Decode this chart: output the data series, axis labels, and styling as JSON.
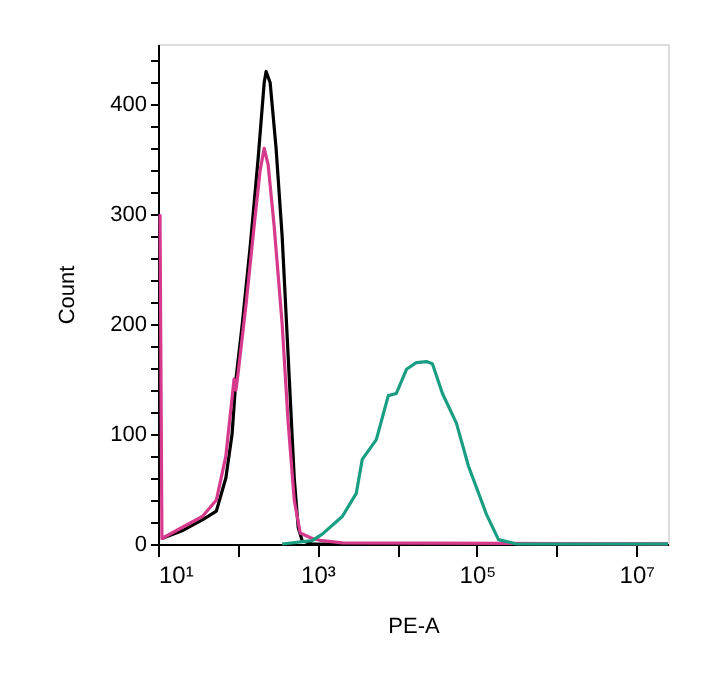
{
  "chart_data": {
    "type": "line",
    "xlabel": "PE-A",
    "ylabel": "Count",
    "log": "x",
    "xlim": [
      10,
      25000000
    ],
    "ylim": [
      0,
      455
    ],
    "xticks": [
      {
        "value": 10,
        "label": "10¹"
      },
      {
        "value": 100,
        "label": null
      },
      {
        "value": 1000,
        "label": "10³"
      },
      {
        "value": 10000,
        "label": null
      },
      {
        "value": 100000,
        "label": "10⁵"
      },
      {
        "value": 1000000,
        "label": null
      },
      {
        "value": 10000000,
        "label": "10⁷"
      }
    ],
    "yticks": [
      0,
      {
        "value": 20,
        "label": null
      },
      {
        "value": 40,
        "label": null
      },
      {
        "value": 60,
        "label": null
      },
      {
        "value": 80,
        "label": null
      },
      100,
      {
        "value": 120,
        "label": null
      },
      {
        "value": 140,
        "label": null
      },
      {
        "value": 160,
        "label": null
      },
      {
        "value": 180,
        "label": null
      },
      200,
      {
        "value": 220,
        "label": null
      },
      {
        "value": 240,
        "label": null
      },
      {
        "value": 260,
        "label": null
      },
      {
        "value": 280,
        "label": null
      },
      300,
      {
        "value": 320,
        "label": null
      },
      {
        "value": 340,
        "label": null
      },
      {
        "value": 360,
        "label": null
      },
      {
        "value": 380,
        "label": null
      },
      400,
      {
        "value": 420,
        "label": null
      },
      {
        "value": 440,
        "label": null
      }
    ],
    "grid": false,
    "legend": false,
    "marker": "none",
    "line_style": "solid",
    "series": [
      {
        "color": "#000000",
        "x": [
          11.2,
          20,
          36,
          54,
          71,
          85,
          95,
          114,
          143,
          180,
          215,
          227,
          255,
          303,
          361,
          430,
          512,
          574,
          644,
          861,
          1150,
          25000000
        ],
        "values": [
          5,
          12,
          22,
          30,
          60,
          100,
          150,
          200,
          270,
          350,
          420,
          430,
          420,
          360,
          280,
          170,
          60,
          15,
          3,
          0,
          0,
          0
        ]
      },
      {
        "color": "#d63a8c",
        "x": [
          10.6,
          11.2,
          20,
          36,
          54,
          71,
          90,
          95,
          101,
          128,
          161,
          191,
          215,
          241,
          286,
          361,
          430,
          512,
          608,
          861,
          1150,
          2050,
          25000000
        ],
        "values": [
          300,
          5,
          15,
          25,
          40,
          80,
          150,
          140,
          155,
          220,
          290,
          340,
          360,
          345,
          290,
          200,
          110,
          40,
          10,
          5,
          3,
          1,
          0
        ]
      },
      {
        "color": "#1a9e82",
        "x": [
          361,
          861,
          1150,
          2050,
          3070,
          3650,
          5480,
          7750,
          9770,
          13100,
          17400,
          23300,
          27700,
          37000,
          55400,
          78400,
          132000,
          187000,
          314000,
          3780000,
          25000000
        ],
        "values": [
          0,
          3,
          9,
          25,
          46,
          77,
          95,
          135,
          137,
          159,
          165,
          166,
          164,
          137,
          110,
          71,
          27,
          4,
          0,
          0,
          0
        ]
      }
    ]
  }
}
